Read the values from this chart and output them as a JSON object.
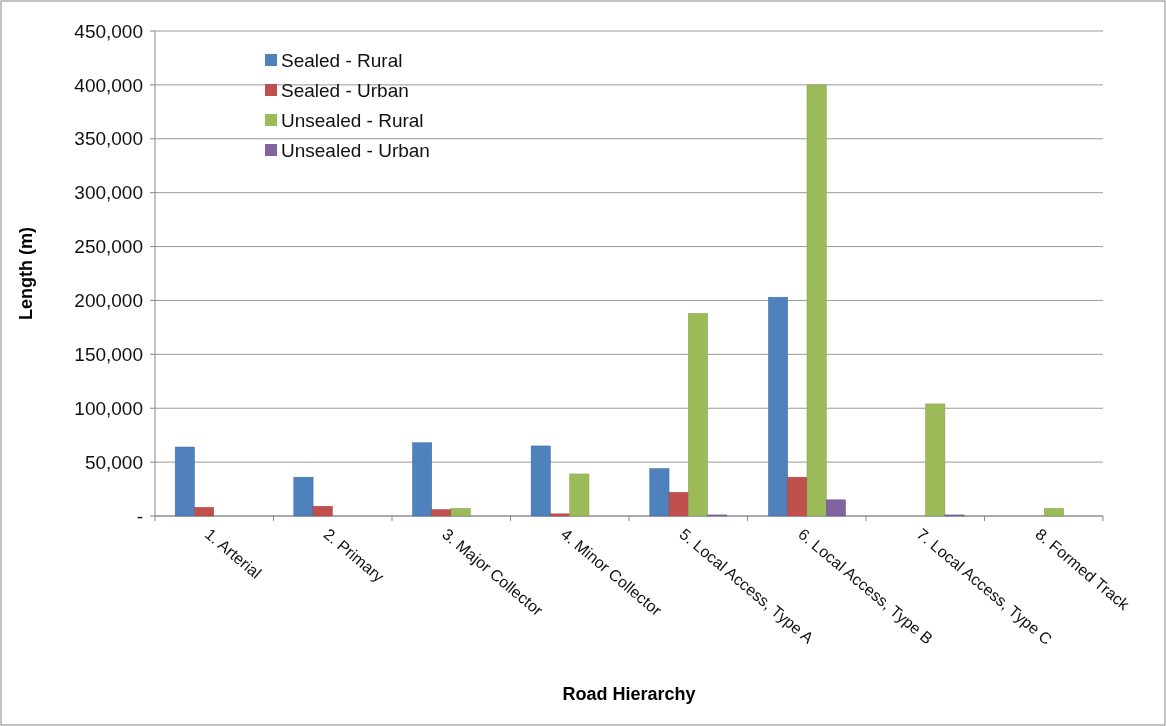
{
  "chart_data": {
    "type": "bar",
    "xlabel": "Road Hierarchy",
    "ylabel": "Length (m)",
    "categories": [
      "1. Arterial",
      "2. Primary",
      "3. Major Collector",
      "4. Minor Collector",
      "5. Local Access, Type A",
      "6. Local Access, Type B",
      "7. Local Access, Type C",
      "8. Formed Track"
    ],
    "series": [
      {
        "name": "Sealed - Rural",
        "color": "#4f81bd",
        "values": [
          64000,
          36000,
          68000,
          65000,
          44000,
          203000,
          0,
          0
        ]
      },
      {
        "name": "Sealed - Urban",
        "color": "#c0504d",
        "values": [
          8000,
          9000,
          6000,
          2000,
          22000,
          36000,
          0,
          0
        ]
      },
      {
        "name": "Unsealed - Rural",
        "color": "#9bbb59",
        "values": [
          0,
          0,
          7000,
          39000,
          188000,
          400000,
          104000,
          7000
        ]
      },
      {
        "name": "Unsealed - Urban",
        "color": "#8064a2",
        "values": [
          0,
          0,
          0,
          0,
          1000,
          15000,
          1000,
          0
        ]
      }
    ],
    "ylim": [
      0,
      450000
    ],
    "yticks": [
      {
        "value": 0,
        "label": "-"
      },
      {
        "value": 50000,
        "label": "50,000"
      },
      {
        "value": 100000,
        "label": "100,000"
      },
      {
        "value": 150000,
        "label": "150,000"
      },
      {
        "value": 200000,
        "label": "200,000"
      },
      {
        "value": 250000,
        "label": "250,000"
      },
      {
        "value": 300000,
        "label": "300,000"
      },
      {
        "value": 350000,
        "label": "350,000"
      },
      {
        "value": 400000,
        "label": "400,000"
      },
      {
        "value": 450000,
        "label": "450,000"
      }
    ],
    "grid": "y",
    "legend": "top left"
  }
}
